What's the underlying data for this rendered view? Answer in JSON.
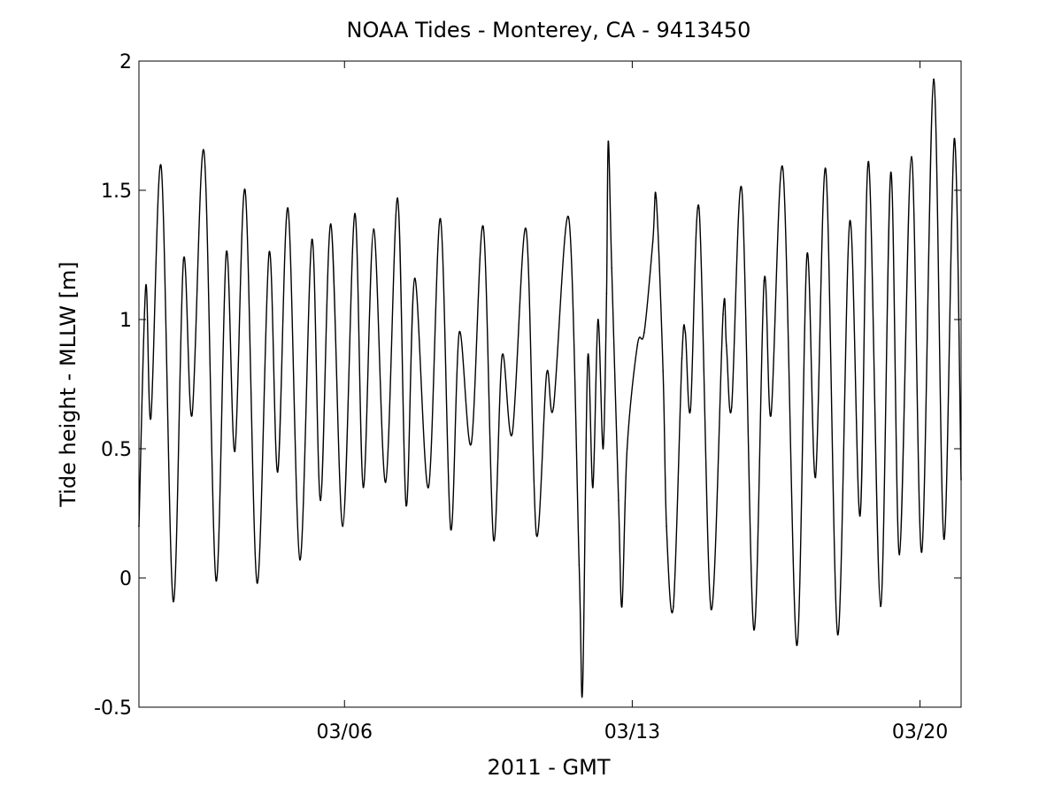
{
  "chart_data": {
    "type": "line",
    "title": "NOAA Tides - Monterey, CA - 9413450",
    "xlabel": "2011 - GMT",
    "ylabel": "Tide height - MLLW [m]",
    "xlim": [
      "2011-03-01",
      "2011-03-21"
    ],
    "ylim": [
      -0.5,
      2
    ],
    "x_ticks": [
      {
        "date": "2011-03-06",
        "label": "03/06"
      },
      {
        "date": "2011-03-13",
        "label": "03/13"
      },
      {
        "date": "2011-03-20",
        "label": "03/20"
      }
    ],
    "y_ticks": [
      {
        "value": -0.5,
        "label": "-0.5"
      },
      {
        "value": 0,
        "label": "0"
      },
      {
        "value": 0.5,
        "label": "0.5"
      },
      {
        "value": 1,
        "label": "1"
      },
      {
        "value": 1.5,
        "label": "1.5"
      },
      {
        "value": 2,
        "label": "2"
      }
    ],
    "grid": false,
    "line_color": "#000000",
    "series": [
      {
        "values": [
          {
            "x": "2011-03-01 00:00",
            "y": 0.2
          },
          {
            "x": "2011-03-01 04:00",
            "y": 1.13
          },
          {
            "x": "2011-03-01 07:00",
            "y": 0.62
          },
          {
            "x": "2011-03-01 13:00",
            "y": 1.59
          },
          {
            "x": "2011-03-01 20:00",
            "y": -0.09
          },
          {
            "x": "2011-03-02 02:00",
            "y": 1.23
          },
          {
            "x": "2011-03-02 07:00",
            "y": 0.63
          },
          {
            "x": "2011-03-02 14:00",
            "y": 1.65
          },
          {
            "x": "2011-03-02 21:00",
            "y": -0.01
          },
          {
            "x": "2011-03-03 03:00",
            "y": 1.26
          },
          {
            "x": "2011-03-03 08:00",
            "y": 0.49
          },
          {
            "x": "2011-03-03 14:00",
            "y": 1.5
          },
          {
            "x": "2011-03-03 21:00",
            "y": -0.02
          },
          {
            "x": "2011-03-04 04:00",
            "y": 1.26
          },
          {
            "x": "2011-03-04 09:00",
            "y": 0.41
          },
          {
            "x": "2011-03-04 15:00",
            "y": 1.43
          },
          {
            "x": "2011-03-04 22:00",
            "y": 0.07
          },
          {
            "x": "2011-03-05 05:00",
            "y": 1.31
          },
          {
            "x": "2011-03-05 10:00",
            "y": 0.3
          },
          {
            "x": "2011-03-05 16:00",
            "y": 1.37
          },
          {
            "x": "2011-03-05 23:00",
            "y": 0.2
          },
          {
            "x": "2011-03-06 06:00",
            "y": 1.41
          },
          {
            "x": "2011-03-06 11:00",
            "y": 0.35
          },
          {
            "x": "2011-03-06 17:00",
            "y": 1.35
          },
          {
            "x": "2011-03-07 00:00",
            "y": 0.37
          },
          {
            "x": "2011-03-07 07:00",
            "y": 1.47
          },
          {
            "x": "2011-03-07 12:00",
            "y": 0.28
          },
          {
            "x": "2011-03-07 17:00",
            "y": 1.16
          },
          {
            "x": "2011-03-08 01:00",
            "y": 0.35
          },
          {
            "x": "2011-03-08 08:00",
            "y": 1.39
          },
          {
            "x": "2011-03-08 14:00",
            "y": 0.19
          },
          {
            "x": "2011-03-08 19:00",
            "y": 0.95
          },
          {
            "x": "2011-03-09 02:00",
            "y": 0.52
          },
          {
            "x": "2011-03-09 09:00",
            "y": 1.36
          },
          {
            "x": "2011-03-09 15:00",
            "y": 0.15
          },
          {
            "x": "2011-03-09 20:00",
            "y": 0.86
          },
          {
            "x": "2011-03-10 02:00",
            "y": 0.56
          },
          {
            "x": "2011-03-10 10:00",
            "y": 1.35
          },
          {
            "x": "2011-03-10 16:00",
            "y": 0.17
          },
          {
            "x": "2011-03-10 22:00",
            "y": 0.79
          },
          {
            "x": "2011-03-11 02:00",
            "y": 0.66
          },
          {
            "x": "2011-03-11 11:00",
            "y": 1.39
          },
          {
            "x": "2011-03-11 17:00",
            "y": 0.05
          },
          {
            "x": "2011-03-11 19:00",
            "y": -0.43
          },
          {
            "x": "2011-03-11 22:00",
            "y": 0.85
          },
          {
            "x": "2011-03-12 01:00",
            "y": 0.35
          },
          {
            "x": "2011-03-12 04:00",
            "y": 1.0
          },
          {
            "x": "2011-03-12 07:00",
            "y": 0.5
          },
          {
            "x": "2011-03-12 09:00",
            "y": 1.1
          },
          {
            "x": "2011-03-12 10:00",
            "y": 1.69
          },
          {
            "x": "2011-03-12 12:00",
            "y": 1.2
          },
          {
            "x": "2011-03-12 16:00",
            "y": 0.3
          },
          {
            "x": "2011-03-12 18:00",
            "y": -0.11
          },
          {
            "x": "2011-03-12 21:00",
            "y": 0.5
          },
          {
            "x": "2011-03-13 03:00",
            "y": 0.9
          },
          {
            "x": "2011-03-13 07:00",
            "y": 0.95
          },
          {
            "x": "2011-03-13 12:00",
            "y": 1.3
          },
          {
            "x": "2011-03-13 14:00",
            "y": 1.47
          },
          {
            "x": "2011-03-13 18:00",
            "y": 0.8
          },
          {
            "x": "2011-03-13 20:00",
            "y": 0.2
          },
          {
            "x": "2011-03-14 00:00",
            "y": -0.11
          },
          {
            "x": "2011-03-14 05:00",
            "y": 0.85
          },
          {
            "x": "2011-03-14 07:00",
            "y": 0.95
          },
          {
            "x": "2011-03-14 10:00",
            "y": 0.65
          },
          {
            "x": "2011-03-14 15:00",
            "y": 1.43
          },
          {
            "x": "2011-03-14 22:00",
            "y": -0.12
          },
          {
            "x": "2011-03-15 05:00",
            "y": 1.02
          },
          {
            "x": "2011-03-15 07:00",
            "y": 0.9
          },
          {
            "x": "2011-03-15 10:00",
            "y": 0.66
          },
          {
            "x": "2011-03-15 16:00",
            "y": 1.5
          },
          {
            "x": "2011-03-15 23:00",
            "y": -0.2
          },
          {
            "x": "2011-03-16 05:00",
            "y": 1.15
          },
          {
            "x": "2011-03-16 09:00",
            "y": 0.63
          },
          {
            "x": "2011-03-16 16:00",
            "y": 1.58
          },
          {
            "x": "2011-03-17 00:00",
            "y": -0.26
          },
          {
            "x": "2011-03-17 06:00",
            "y": 1.25
          },
          {
            "x": "2011-03-17 11:00",
            "y": 0.39
          },
          {
            "x": "2011-03-17 17:00",
            "y": 1.58
          },
          {
            "x": "2011-03-18 00:00",
            "y": -0.22
          },
          {
            "x": "2011-03-18 07:00",
            "y": 1.38
          },
          {
            "x": "2011-03-18 13:00",
            "y": 0.24
          },
          {
            "x": "2011-03-18 18:00",
            "y": 1.61
          },
          {
            "x": "2011-03-19 01:00",
            "y": -0.11
          },
          {
            "x": "2011-03-19 07:00",
            "y": 1.57
          },
          {
            "x": "2011-03-19 12:00",
            "y": 0.09
          },
          {
            "x": "2011-03-19 19:00",
            "y": 1.63
          },
          {
            "x": "2011-03-20 01:00",
            "y": 0.1
          },
          {
            "x": "2011-03-20 08:00",
            "y": 1.93
          },
          {
            "x": "2011-03-20 14:00",
            "y": 0.15
          },
          {
            "x": "2011-03-20 20:00",
            "y": 1.7
          },
          {
            "x": "2011-03-21 00:00",
            "y": 0.38
          }
        ]
      }
    ]
  }
}
